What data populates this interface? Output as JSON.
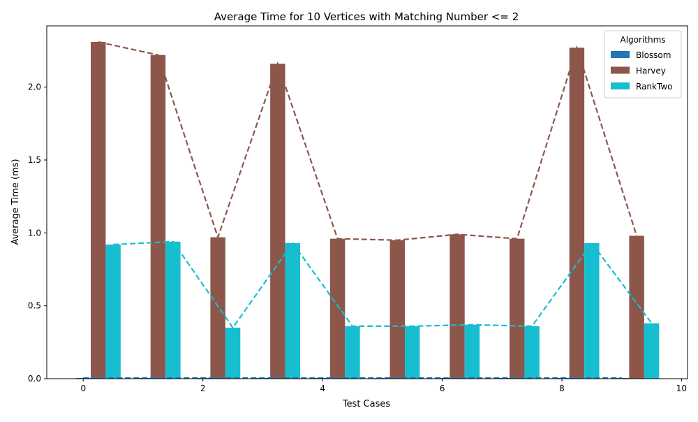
{
  "chart_data": {
    "type": "bar",
    "title": "Average Time for 10 Vertices with Matching Number <= 2",
    "xlabel": "Test Cases",
    "ylabel": "Average Time (ms)",
    "categories": [
      0,
      1,
      2,
      3,
      4,
      5,
      6,
      7,
      8,
      9
    ],
    "xlim": [
      -0.61,
      10.1
    ],
    "ylim": [
      0,
      2.42
    ],
    "xticks": [
      0,
      2,
      4,
      6,
      8,
      10
    ],
    "yticks": [
      0.0,
      0.5,
      1.0,
      1.5,
      2.0,
      2.5
    ],
    "xtick_labels": [
      "0",
      "2",
      "4",
      "6",
      "8",
      "10"
    ],
    "ytick_labels": [
      "0.0",
      "0.5",
      "1.0",
      "1.5",
      "2.0"
    ],
    "grid": false,
    "legend": {
      "title": "Algorithms",
      "placement": "top-right"
    },
    "series": [
      {
        "name": "Blossom",
        "color": "#1f77b4",
        "offset": 0.0,
        "values": [
          0.005,
          0.005,
          0.005,
          0.005,
          0.005,
          0.005,
          0.005,
          0.005,
          0.005,
          0.005
        ]
      },
      {
        "name": "Harvey",
        "color": "#8c564b",
        "offset": 0.25,
        "values": [
          2.31,
          2.22,
          0.97,
          2.16,
          0.96,
          0.95,
          0.99,
          0.96,
          2.27,
          0.98
        ]
      },
      {
        "name": "RankTwo",
        "color": "#17becf",
        "offset": 0.5,
        "values": [
          0.92,
          0.94,
          0.35,
          0.93,
          0.36,
          0.36,
          0.37,
          0.36,
          0.93,
          0.38
        ]
      }
    ],
    "bar_width": 0.25,
    "trend_lines": "dashed, per series, through bar centers"
  }
}
